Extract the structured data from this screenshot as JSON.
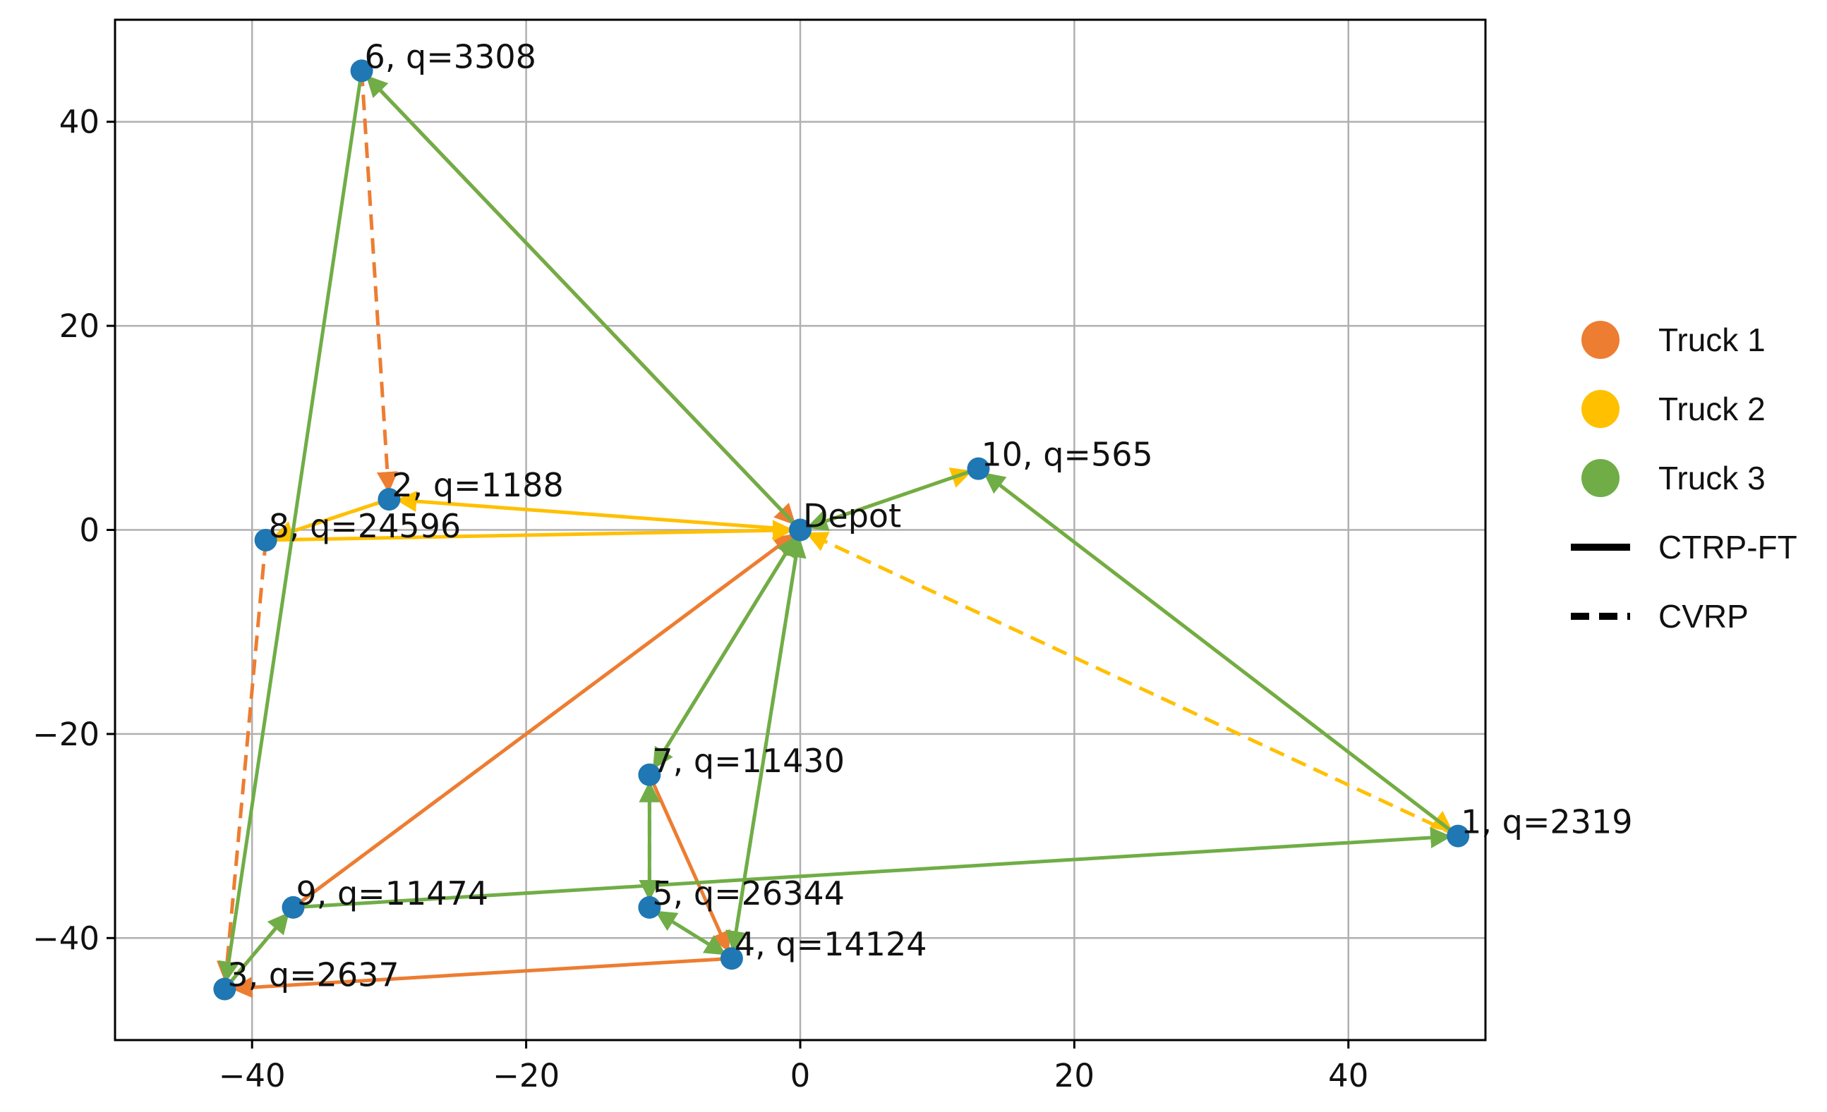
{
  "chart_data": {
    "type": "scatter",
    "title": "",
    "xlabel": "",
    "ylabel": "",
    "xlim": [
      -50,
      50
    ],
    "ylim": [
      -50,
      50
    ],
    "xticks": [
      -40,
      -20,
      0,
      20,
      40
    ],
    "yticks": [
      -40,
      -20,
      0,
      20,
      40
    ],
    "xtick_labels": [
      "−40",
      "−20",
      "0",
      "20",
      "40"
    ],
    "ytick_labels": [
      "−40",
      "−20",
      "0",
      "20",
      "40"
    ],
    "grid": true,
    "point_color": "#1f77b4",
    "points": [
      {
        "id": "Depot",
        "label": "Depot",
        "x": 0,
        "y": 0
      },
      {
        "id": "1",
        "label": "1, q=2319",
        "x": 48,
        "y": -30
      },
      {
        "id": "2",
        "label": "2, q=1188",
        "x": -30,
        "y": 3
      },
      {
        "id": "3",
        "label": "3, q=2637",
        "x": -42,
        "y": -45
      },
      {
        "id": "4",
        "label": "4, q=14124",
        "x": -5,
        "y": -42
      },
      {
        "id": "5",
        "label": "5, q=26344",
        "x": -11,
        "y": -37
      },
      {
        "id": "6",
        "label": "6, q=3308",
        "x": -32,
        "y": 45
      },
      {
        "id": "7",
        "label": "7, q=11430",
        "x": -11,
        "y": -24
      },
      {
        "id": "8",
        "label": "8, q=24596",
        "x": -39,
        "y": -1
      },
      {
        "id": "9",
        "label": "9, q=11474",
        "x": -37,
        "y": -37
      },
      {
        "id": "10",
        "label": "10, q=565",
        "x": 13,
        "y": 6
      }
    ],
    "series": [
      {
        "truck": "Truck 1",
        "method": "CTRP-FT",
        "color": "#ed7d31",
        "dashed": false,
        "route": [
          "Depot",
          "6",
          "Depot",
          "7",
          "4",
          "3",
          "9",
          "Depot"
        ]
      },
      {
        "truck": "Truck 1",
        "method": "CVRP",
        "color": "#ed7d31",
        "dashed": true,
        "route": [
          "Depot",
          "6",
          "2",
          "8",
          "3",
          "9",
          "Depot"
        ]
      },
      {
        "truck": "Truck 2",
        "method": "CTRP-FT",
        "color": "#ffc000",
        "dashed": false,
        "route": [
          "Depot",
          "2",
          "8",
          "Depot",
          "10",
          "1"
        ]
      },
      {
        "truck": "Truck 2",
        "method": "CVRP",
        "color": "#ffc000",
        "dashed": true,
        "route": [
          "Depot",
          "10",
          "1",
          "Depot"
        ]
      },
      {
        "truck": "Truck 3",
        "method": "CTRP-FT",
        "color": "#70ad47",
        "dashed": false,
        "route": [
          "Depot",
          "6",
          "3",
          "9",
          "1",
          "10",
          "Depot",
          "7",
          "5",
          "4",
          "Depot"
        ]
      },
      {
        "truck": "Truck 3",
        "method": "CVRP",
        "color": "#70ad47",
        "dashed": true,
        "route": [
          "Depot",
          "4",
          "5",
          "7",
          "Depot"
        ]
      }
    ],
    "legend": {
      "placement": "right",
      "entries": [
        {
          "label": "Truck 1",
          "marker": "circle",
          "color": "#ed7d31"
        },
        {
          "label": "Truck 2",
          "marker": "circle",
          "color": "#ffc000"
        },
        {
          "label": "Truck 3",
          "marker": "circle",
          "color": "#70ad47"
        },
        {
          "label": "CTRP-FT",
          "marker": "solid-line",
          "color": "#000000"
        },
        {
          "label": "CVRP",
          "marker": "dashed-line",
          "color": "#000000"
        }
      ]
    }
  }
}
